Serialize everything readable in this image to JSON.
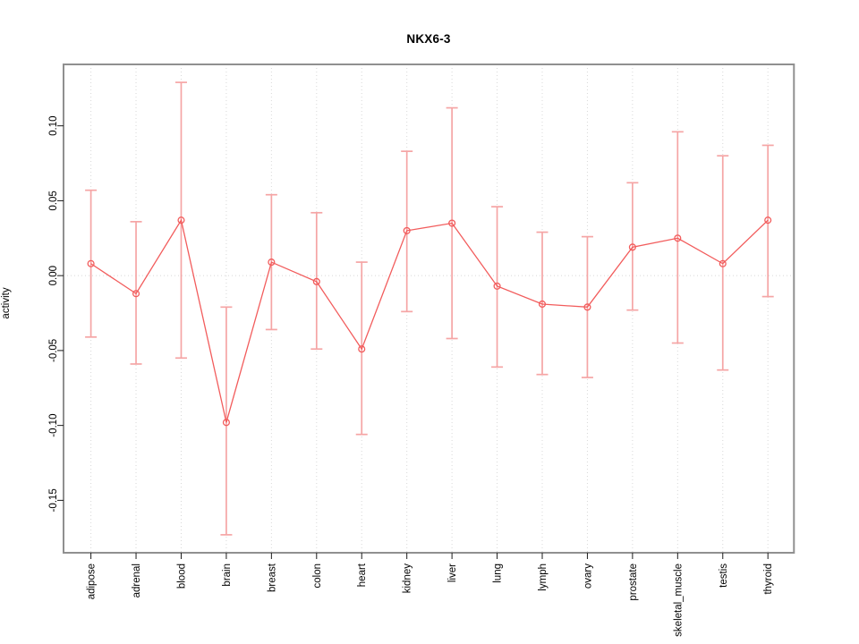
{
  "chart_data": {
    "type": "line",
    "subtype": "points-with-error-bars",
    "title": "NKX6-3",
    "xlabel": "",
    "ylabel": "activity",
    "categories": [
      "adipose",
      "adrenal",
      "blood",
      "brain",
      "breast",
      "colon",
      "heart",
      "kidney",
      "liver",
      "lung",
      "lymph",
      "ovary",
      "prostate",
      "skeletal_muscle",
      "testis",
      "thyroid"
    ],
    "series": [
      {
        "name": "activity",
        "values": [
          0.008,
          -0.012,
          0.037,
          -0.098,
          0.009,
          -0.004,
          -0.049,
          0.03,
          0.035,
          -0.007,
          -0.019,
          -0.021,
          0.019,
          0.025,
          0.008,
          0.037
        ],
        "error_high": [
          0.057,
          0.036,
          0.129,
          -0.021,
          0.054,
          0.042,
          0.009,
          0.083,
          0.112,
          0.046,
          0.029,
          0.026,
          0.062,
          0.096,
          0.08,
          0.087
        ],
        "error_low": [
          -0.041,
          -0.059,
          -0.055,
          -0.173,
          -0.036,
          -0.049,
          -0.106,
          -0.024,
          -0.042,
          -0.061,
          -0.066,
          -0.068,
          -0.023,
          -0.045,
          -0.063,
          -0.014
        ]
      }
    ],
    "ylim": [
      -0.185,
      0.141
    ],
    "yticks": [
      0.1,
      0.05,
      0.0,
      -0.05,
      -0.1,
      -0.15
    ],
    "ytick_labels": [
      "0.10",
      "0.05",
      "0.00",
      "-0.05",
      "-0.10",
      "-0.15"
    ],
    "grid": {
      "vertical": "dotted at every category",
      "horizontal": "dotted at y=0 only"
    },
    "legend": "none",
    "colors": {
      "series": "#f25c5c",
      "error_bars": "#f5a5a5",
      "grid": "#d8d8d8",
      "zero_line": "#d8d8d8",
      "frame": "#909090",
      "ticks": "#1a1a1a",
      "tick_labels": "#000000",
      "background": "#ffffff"
    }
  }
}
